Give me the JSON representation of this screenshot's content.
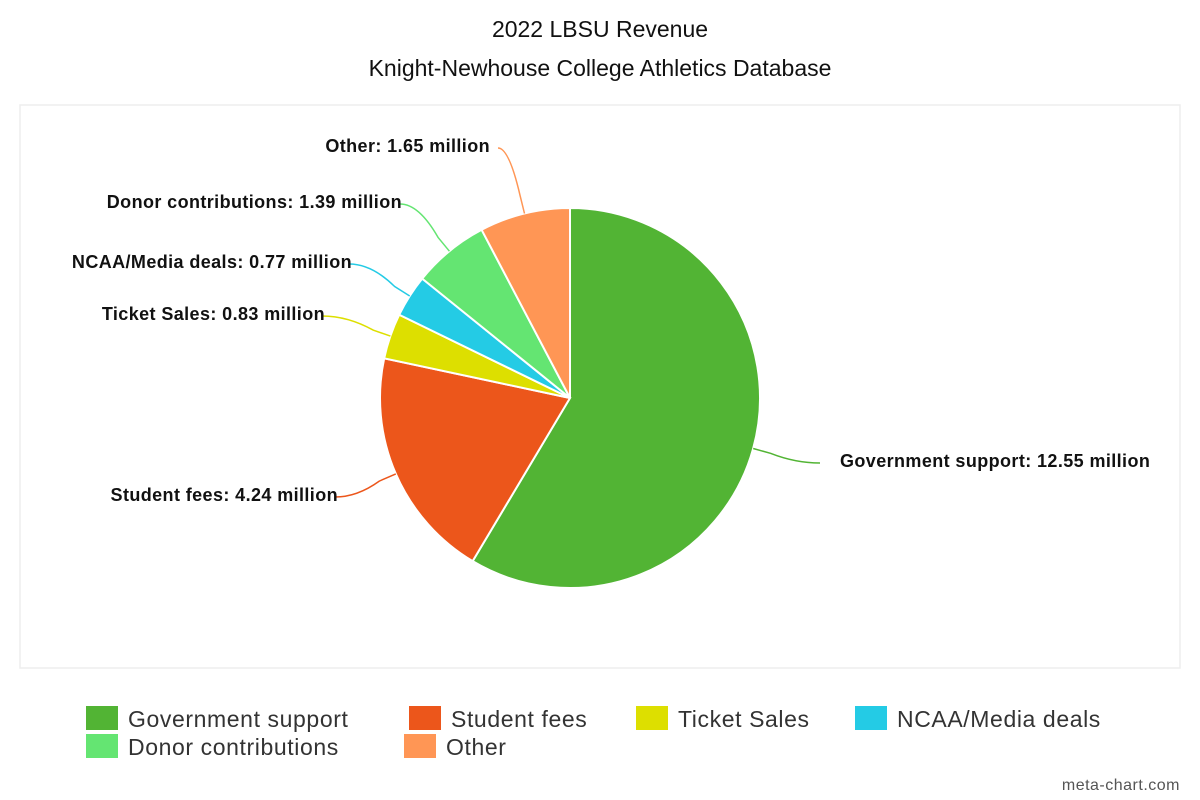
{
  "chart_data": {
    "type": "pie",
    "title": "2022 LBSU Revenue",
    "subtitle": "Knight-Newhouse College Athletics Database",
    "unit": "million",
    "slices": [
      {
        "name": "Government support",
        "value": 12.55,
        "label": "Government support: 12.55 million",
        "color": "#52b434"
      },
      {
        "name": "Student fees",
        "value": 4.24,
        "label": "Student fees: 4.24 million",
        "color": "#ec561b"
      },
      {
        "name": "Ticket Sales",
        "value": 0.83,
        "label": "Ticket Sales: 0.83 million",
        "color": "#dddf00"
      },
      {
        "name": "NCAA/Media deals",
        "value": 0.77,
        "label": "NCAA/Media deals: 0.77 million",
        "color": "#24cbe5"
      },
      {
        "name": "Donor contributions",
        "value": 1.39,
        "label": "Donor contributions: 1.39 million",
        "color": "#64e572"
      },
      {
        "name": "Other",
        "value": 1.65,
        "label": "Other: 1.65 million",
        "color": "#ff9655"
      }
    ],
    "legend": [
      "Government support",
      "Student fees",
      "Ticket Sales",
      "NCAA/Media deals",
      "Donor contributions",
      "Other"
    ],
    "legend_position": "bottom"
  },
  "watermark": "meta-chart.com"
}
